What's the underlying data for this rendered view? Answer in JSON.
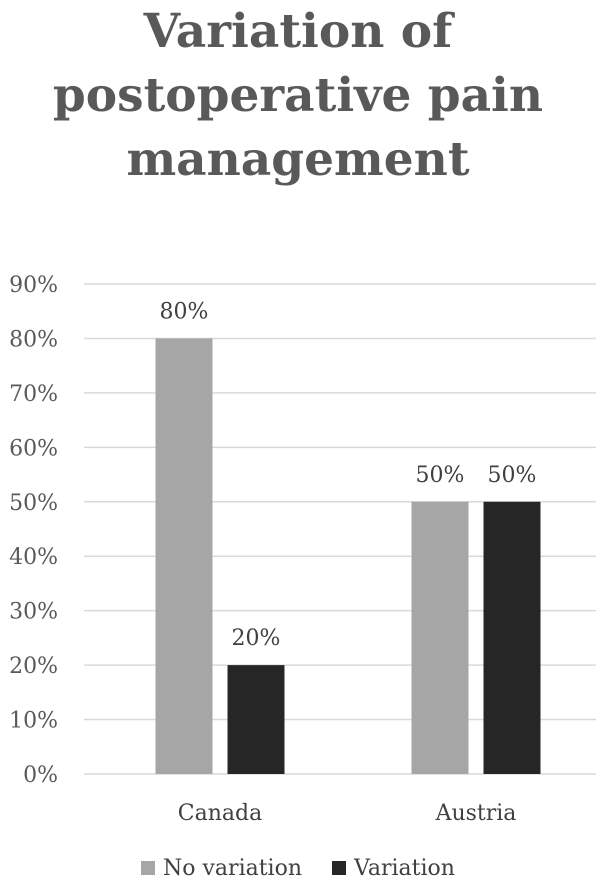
{
  "chart_data": {
    "type": "bar",
    "title_lines": [
      "Variation of",
      "postoperative pain",
      "management"
    ],
    "categories": [
      "Canada",
      "Austria"
    ],
    "series": [
      {
        "name": "No variation",
        "values": [
          80,
          50
        ],
        "color": "#a6a6a6"
      },
      {
        "name": "Variation",
        "values": [
          20,
          50
        ],
        "color": "#262626"
      }
    ],
    "data_labels": [
      [
        "80%",
        "50%"
      ],
      [
        "20%",
        "50%"
      ]
    ],
    "ylim": [
      0,
      90
    ],
    "yticks": [
      "0%",
      "10%",
      "20%",
      "30%",
      "40%",
      "50%",
      "60%",
      "70%",
      "80%",
      "90%"
    ],
    "grid": true,
    "legend_position": "bottom",
    "gridline_color": "#d9d9d9",
    "text_color": "#595959"
  }
}
